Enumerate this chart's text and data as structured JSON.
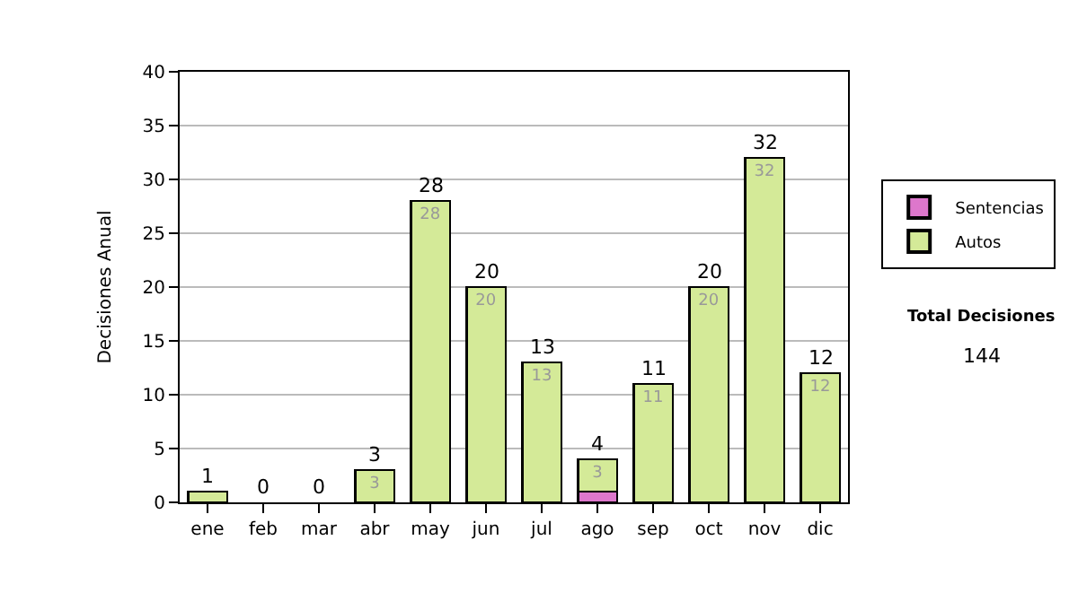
{
  "chart_data": {
    "type": "bar",
    "stacked": true,
    "ylabel": "Decisiones Anual",
    "categories": [
      "ene",
      "feb",
      "mar",
      "abr",
      "may",
      "jun",
      "jul",
      "ago",
      "sep",
      "oct",
      "nov",
      "dic"
    ],
    "series": [
      {
        "name": "Sentencias",
        "color": "#dd77cc",
        "values": [
          0,
          0,
          0,
          0,
          0,
          0,
          0,
          1,
          0,
          0,
          0,
          0
        ],
        "value_labels": [
          null,
          null,
          null,
          null,
          null,
          null,
          null,
          null,
          null,
          null,
          null,
          null
        ]
      },
      {
        "name": "Autos",
        "color": "#d4ea98",
        "values": [
          1,
          0,
          0,
          3,
          28,
          20,
          13,
          3,
          11,
          20,
          32,
          12
        ],
        "value_labels": [
          null,
          null,
          null,
          "3",
          "28",
          "20",
          "13",
          "3",
          "11",
          "20",
          "32",
          "12"
        ]
      }
    ],
    "totals": [
      "1",
      "0",
      "0",
      "3",
      "28",
      "20",
      "13",
      "4",
      "11",
      "20",
      "32",
      "12"
    ],
    "ylim": [
      0,
      40
    ],
    "yticks": [
      0,
      5,
      10,
      15,
      20,
      25,
      30,
      35,
      40
    ],
    "grid": "y",
    "legend": "right",
    "annotations": [
      "Total Decisiones",
      "144"
    ]
  }
}
